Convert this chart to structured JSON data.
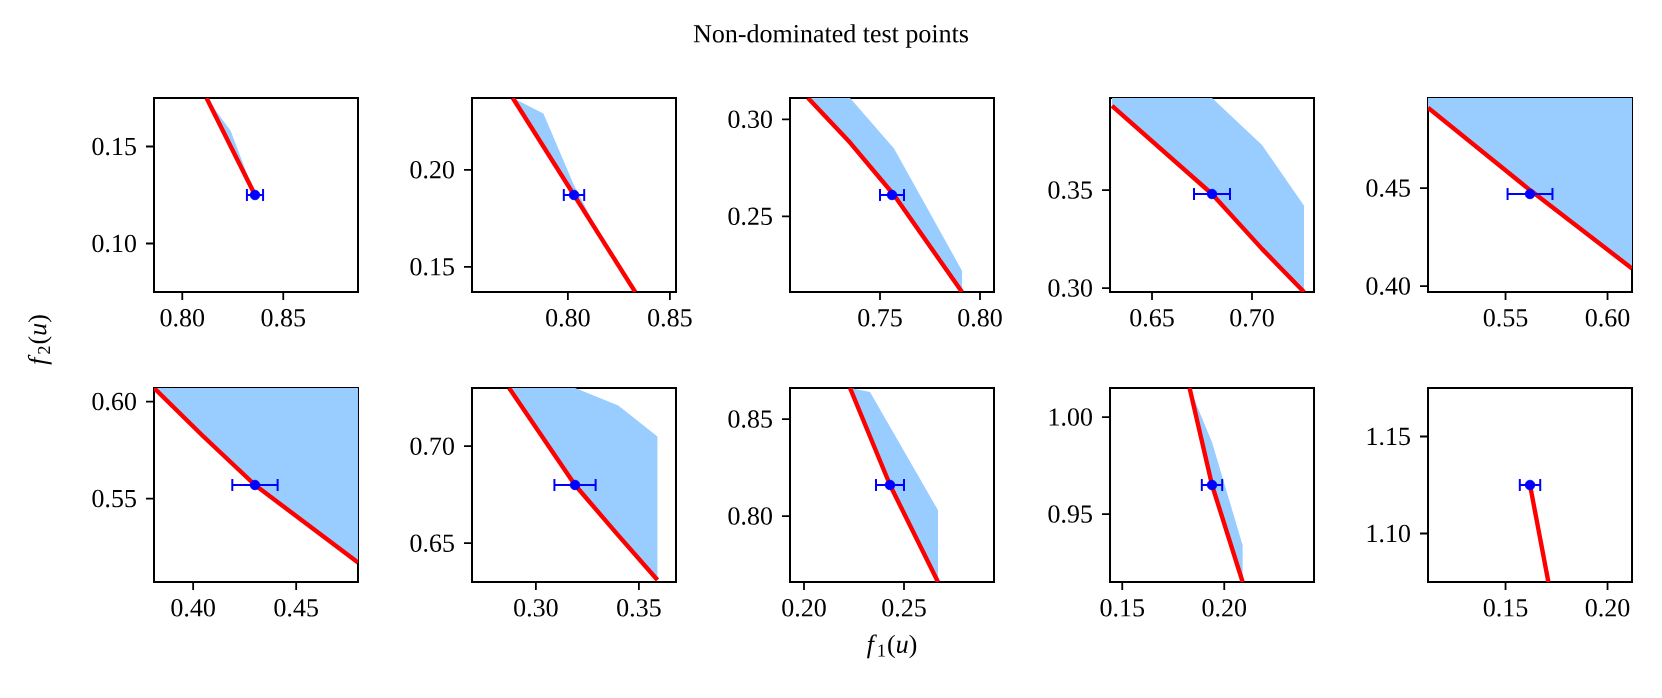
{
  "chart_data": [
    {
      "type": "line",
      "xlim": [
        0.786,
        0.887
      ],
      "ylim": [
        0.075,
        0.175
      ],
      "xticks": [
        {
          "value": 0.8,
          "label": "0.80"
        },
        0.85
      ],
      "yticks": [
        {
          "value": 0.1,
          "label": "0.10"
        },
        0.15
      ],
      "series": [
        {
          "color": "#ff0000",
          "x": [
            0.812,
            0.824,
            0.836
          ],
          "values": [
            0.175,
            0.15,
            0.125
          ],
          "lower": [
            0.175,
            0.15,
            0.125
          ],
          "upper": [
            0.175,
            0.158,
            0.125
          ]
        },
        {
          "type": "scatter",
          "color": "#0000ff",
          "x": [
            0.836
          ],
          "values": [
            0.125
          ],
          "xerrors": [
            0.004
          ]
        }
      ]
    },
    {
      "type": "line",
      "xlim": [
        0.753,
        0.853
      ],
      "ylim": [
        0.137,
        0.237
      ],
      "xticks": [
        {
          "value": 0.8,
          "label": "0.80"
        },
        0.85
      ],
      "yticks": [
        0.15,
        {
          "value": 0.2,
          "label": "0.20"
        }
      ],
      "series": [
        {
          "color": "#ff0000",
          "x": [
            0.773,
            0.788,
            0.803,
            0.818,
            0.833
          ],
          "values": [
            0.237,
            0.212,
            0.187,
            0.162,
            0.137
          ],
          "lower": [
            0.237,
            0.212,
            0.187,
            0.162,
            0.137
          ],
          "upper": [
            0.237,
            0.229,
            0.192,
            0.162,
            0.137
          ]
        },
        {
          "type": "scatter",
          "color": "#0000ff",
          "x": [
            0.803
          ],
          "values": [
            0.187
          ],
          "xerrors": [
            0.005
          ]
        }
      ]
    },
    {
      "type": "line",
      "title": "Non-dominated test points",
      "xlim": [
        0.705,
        0.807
      ],
      "ylim": [
        0.211,
        0.311
      ],
      "xticks": [
        0.75,
        {
          "value": 0.8,
          "label": "0.80"
        }
      ],
      "yticks": [
        0.25,
        {
          "value": 0.3,
          "label": "0.30"
        }
      ],
      "series": [
        {
          "color": "#ff0000",
          "x": [
            0.714,
            0.735,
            0.757,
            0.791
          ],
          "values": [
            0.311,
            0.288,
            0.261,
            0.211
          ],
          "lower": [
            0.311,
            0.288,
            0.261,
            0.211
          ],
          "upper": [
            0.311,
            0.311,
            0.285,
            0.222
          ]
        },
        {
          "type": "scatter",
          "color": "#0000ff",
          "x": [
            0.756
          ],
          "values": [
            0.261
          ],
          "xerrors": [
            0.006
          ]
        }
      ]
    },
    {
      "type": "line",
      "xlim": [
        0.629,
        0.731
      ],
      "ylim": [
        0.298,
        0.397
      ],
      "xticks": [
        0.65,
        {
          "value": 0.7,
          "label": "0.70"
        }
      ],
      "yticks": [
        {
          "value": 0.3,
          "label": "0.30"
        },
        0.35
      ],
      "series": [
        {
          "color": "#ff0000",
          "x": [
            0.63,
            0.68,
            0.705,
            0.726
          ],
          "values": [
            0.393,
            0.348,
            0.32,
            0.298
          ],
          "lower": [
            0.393,
            0.348,
            0.32,
            0.298
          ],
          "upper": [
            0.397,
            0.397,
            0.373,
            0.342
          ]
        },
        {
          "type": "scatter",
          "color": "#0000ff",
          "x": [
            0.68
          ],
          "values": [
            0.348
          ],
          "xerrors": [
            0.009
          ]
        }
      ]
    },
    {
      "type": "line",
      "xlim": [
        0.512,
        0.612
      ],
      "ylim": [
        0.397,
        0.496
      ],
      "xticks": [
        0.55,
        {
          "value": 0.6,
          "label": "0.60"
        }
      ],
      "yticks": [
        {
          "value": 0.4,
          "label": "0.40"
        },
        0.45
      ],
      "series": [
        {
          "color": "#ff0000",
          "x": [
            0.512,
            0.562,
            0.612
          ],
          "values": [
            0.491,
            0.449,
            0.409
          ],
          "lower": [
            0.491,
            0.449,
            0.409
          ],
          "upper": [
            0.496,
            0.496,
            0.496
          ]
        },
        {
          "type": "scatter",
          "color": "#0000ff",
          "x": [
            0.562
          ],
          "values": [
            0.447
          ],
          "xerrors": [
            0.011
          ]
        }
      ]
    },
    {
      "type": "line",
      "ylabel": "*f*$_{2}$(*u*)",
      "xlim": [
        0.381,
        0.48
      ],
      "ylim": [
        0.507,
        0.607
      ],
      "xticks": [
        {
          "value": 0.4,
          "label": "0.40"
        },
        0.45
      ],
      "yticks": [
        0.55,
        {
          "value": 0.6,
          "label": "0.60"
        }
      ],
      "series": [
        {
          "color": "#ff0000",
          "x": [
            0.381,
            0.405,
            0.43,
            0.455,
            0.48
          ],
          "values": [
            0.607,
            0.582,
            0.557,
            0.537,
            0.517
          ],
          "lower": [
            0.607,
            0.582,
            0.557,
            0.537,
            0.517
          ],
          "upper": [
            0.607,
            0.607,
            0.607,
            0.607,
            0.607
          ]
        },
        {
          "type": "scatter",
          "color": "#0000ff",
          "x": [
            0.43
          ],
          "values": [
            0.557
          ],
          "xerrors": [
            0.011
          ]
        }
      ]
    },
    {
      "type": "line",
      "xlim": [
        0.269,
        0.368
      ],
      "ylim": [
        0.63,
        0.73
      ],
      "xticks": [
        {
          "value": 0.3,
          "label": "0.30"
        },
        0.35
      ],
      "yticks": [
        0.65,
        {
          "value": 0.7,
          "label": "0.70"
        }
      ],
      "series": [
        {
          "color": "#ff0000",
          "x": [
            0.287,
            0.319,
            0.34,
            0.359
          ],
          "values": [
            0.73,
            0.68,
            0.654,
            0.631
          ],
          "lower": [
            0.73,
            0.68,
            0.654,
            0.631
          ],
          "upper": [
            0.73,
            0.73,
            0.721,
            0.705
          ]
        },
        {
          "type": "scatter",
          "color": "#0000ff",
          "x": [
            0.319
          ],
          "values": [
            0.68
          ],
          "xerrors": [
            0.01
          ]
        }
      ]
    },
    {
      "type": "line",
      "xlabel": "*f*$_{1}$(*u*)",
      "xlim": [
        0.193,
        0.295
      ],
      "ylim": [
        0.766,
        0.866
      ],
      "xticks": [
        {
          "value": 0.2,
          "label": "0.20"
        },
        0.25
      ],
      "yticks": [
        {
          "value": 0.8,
          "label": "0.80"
        },
        0.85
      ],
      "series": [
        {
          "color": "#ff0000",
          "x": [
            0.223,
            0.233,
            0.243,
            0.267
          ],
          "values": [
            0.866,
            0.841,
            0.816,
            0.766
          ],
          "lower": [
            0.866,
            0.841,
            0.816,
            0.766
          ],
          "upper": [
            0.866,
            0.864,
            0.846,
            0.803
          ]
        },
        {
          "type": "scatter",
          "color": "#0000ff",
          "x": [
            0.243
          ],
          "values": [
            0.816
          ],
          "xerrors": [
            0.007
          ]
        }
      ]
    },
    {
      "type": "line",
      "xlim": [
        0.144,
        0.244
      ],
      "ylim": [
        0.915,
        1.015
      ],
      "xticks": [
        0.15,
        {
          "value": 0.2,
          "label": "0.20"
        }
      ],
      "yticks": [
        0.95,
        {
          "value": 1.0,
          "label": "1.00"
        }
      ],
      "series": [
        {
          "color": "#ff0000",
          "x": [
            0.183,
            0.194,
            0.209
          ],
          "values": [
            1.015,
            0.965,
            0.915
          ],
          "lower": [
            1.015,
            0.965,
            0.915
          ],
          "upper": [
            1.015,
            0.987,
            0.934
          ]
        },
        {
          "type": "scatter",
          "color": "#0000ff",
          "x": [
            0.194
          ],
          "values": [
            0.965
          ],
          "xerrors": [
            0.005
          ]
        }
      ]
    },
    {
      "type": "line",
      "xlim": [
        0.112,
        0.212
      ],
      "ylim": [
        1.075,
        1.175
      ],
      "xticks": [
        0.15,
        {
          "value": 0.2,
          "label": "0.20"
        }
      ],
      "yticks": [
        {
          "value": 1.1,
          "label": "1.10"
        },
        1.15
      ],
      "series": [
        {
          "color": "#ff0000",
          "x": [
            0.162,
            0.171
          ],
          "values": [
            1.125,
            1.075
          ]
        },
        {
          "type": "scatter",
          "color": "#0000ff",
          "x": [
            0.162
          ],
          "values": [
            1.125
          ],
          "xerrors": [
            0.005
          ]
        }
      ]
    }
  ]
}
